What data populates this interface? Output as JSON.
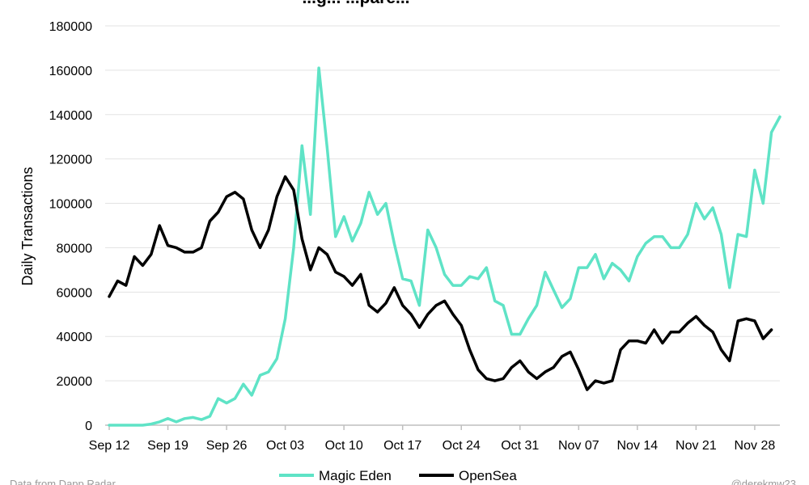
{
  "chart_data": {
    "type": "line",
    "title": "...g... ...pare...",
    "ylabel": "Daily Transactions",
    "xlabel": "",
    "ylim": [
      0,
      180000
    ],
    "yticks": [
      0,
      20000,
      40000,
      60000,
      80000,
      100000,
      120000,
      140000,
      160000,
      180000
    ],
    "xticks": [
      "Sep 12",
      "Sep 19",
      "Sep 26",
      "Oct 03",
      "Oct 10",
      "Oct 17",
      "Oct 24",
      "Oct 31",
      "Nov 07",
      "Nov 14",
      "Nov 21",
      "Nov 28"
    ],
    "grid": "horizontal",
    "legend_position": "bottom",
    "x_start": "Sep 12",
    "series": [
      {
        "name": "Magic Eden",
        "color": "#5fe3c6",
        "values": [
          0,
          0,
          0,
          0,
          0,
          500,
          1500,
          3000,
          1500,
          3000,
          3500,
          2500,
          4000,
          12000,
          10000,
          12000,
          18500,
          13500,
          22500,
          24000,
          30000,
          48000,
          80000,
          126000,
          95000,
          161000,
          125000,
          85000,
          94000,
          83000,
          91000,
          105000,
          95000,
          100000,
          82000,
          66000,
          65000,
          54000,
          88000,
          80000,
          68000,
          63000,
          63000,
          67000,
          66000,
          71000,
          56000,
          54000,
          41000,
          41000,
          48000,
          54000,
          69000,
          61000,
          53000,
          57000,
          71000,
          71000,
          77000,
          66000,
          73000,
          70000,
          65000,
          76000,
          82000,
          85000,
          85000,
          80000,
          80000,
          86000,
          100000,
          93000,
          98000,
          86000,
          62000,
          86000,
          85000,
          115000,
          100000,
          132000,
          139000
        ]
      },
      {
        "name": "OpenSea",
        "color": "#000000",
        "values": [
          58000,
          65000,
          63000,
          76000,
          72000,
          77000,
          90000,
          81000,
          80000,
          78000,
          78000,
          80000,
          92000,
          96000,
          103000,
          105000,
          102000,
          88000,
          80000,
          88000,
          103000,
          112000,
          106000,
          84000,
          70000,
          80000,
          77000,
          69000,
          67000,
          63000,
          68000,
          54000,
          51000,
          55000,
          62000,
          54000,
          50000,
          44000,
          50000,
          54000,
          56000,
          50000,
          45000,
          34000,
          25000,
          21000,
          20000,
          21000,
          26000,
          29000,
          24000,
          21000,
          24000,
          26000,
          31000,
          33000,
          25000,
          16000,
          20000,
          19000,
          20000,
          34000,
          38000,
          38000,
          37000,
          43000,
          37000,
          42000,
          42000,
          46000,
          49000,
          45000,
          42000,
          34000,
          29000,
          47000,
          48000,
          47000,
          39000,
          43000
        ]
      }
    ]
  },
  "footer": {
    "source": "Data from Dapp Radar",
    "credit": "@derekmw23"
  }
}
